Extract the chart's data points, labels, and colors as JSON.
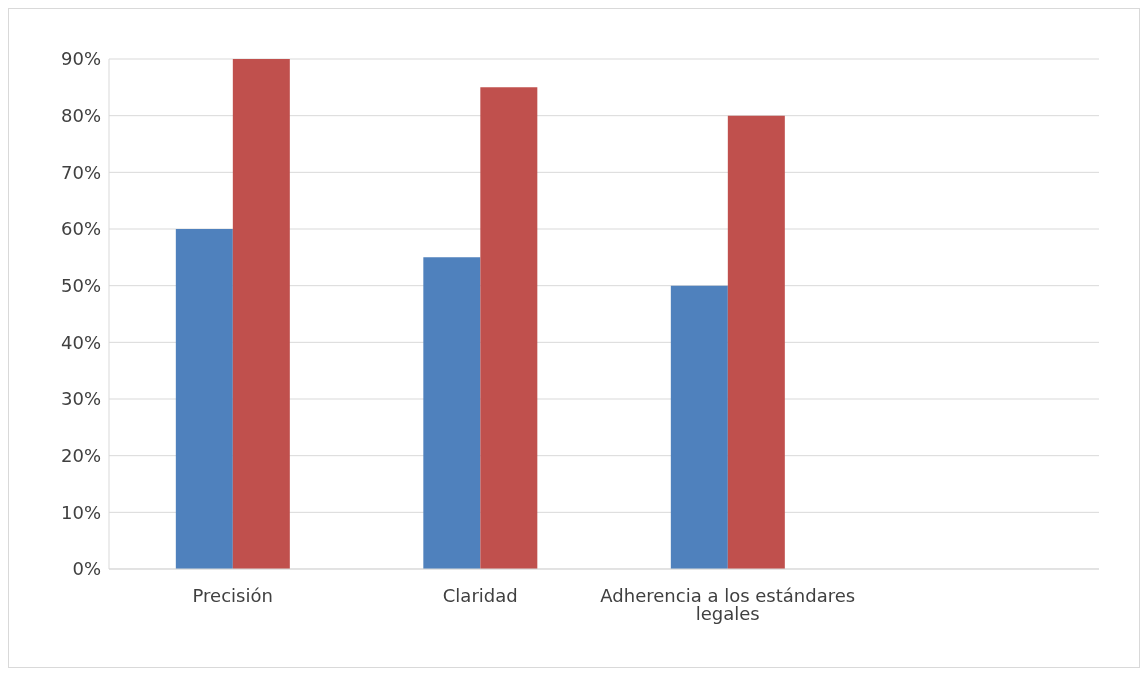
{
  "chart_data": {
    "type": "bar",
    "categories": [
      "Precisión",
      "Claridad",
      "Adherencia a los estándares legales",
      null
    ],
    "series": [
      {
        "color": "#4f81bd",
        "values": [
          60,
          55,
          50,
          null
        ]
      },
      {
        "color": "#c0504d",
        "values": [
          90,
          85,
          80,
          null
        ]
      }
    ],
    "ylim": [
      0,
      90
    ],
    "yticks": [
      {
        "value": 0,
        "label": "0%"
      },
      {
        "value": 10,
        "label": "10%"
      },
      {
        "value": 20,
        "label": "20%"
      },
      {
        "value": 30,
        "label": "30%"
      },
      {
        "value": 40,
        "label": "40%"
      },
      {
        "value": 50,
        "label": "50%"
      },
      {
        "value": 60,
        "label": "60%"
      },
      {
        "value": 70,
        "label": "70%"
      },
      {
        "value": 80,
        "label": "80%"
      },
      {
        "value": 90,
        "label": "90%"
      }
    ],
    "grid": "y",
    "legend": false
  }
}
